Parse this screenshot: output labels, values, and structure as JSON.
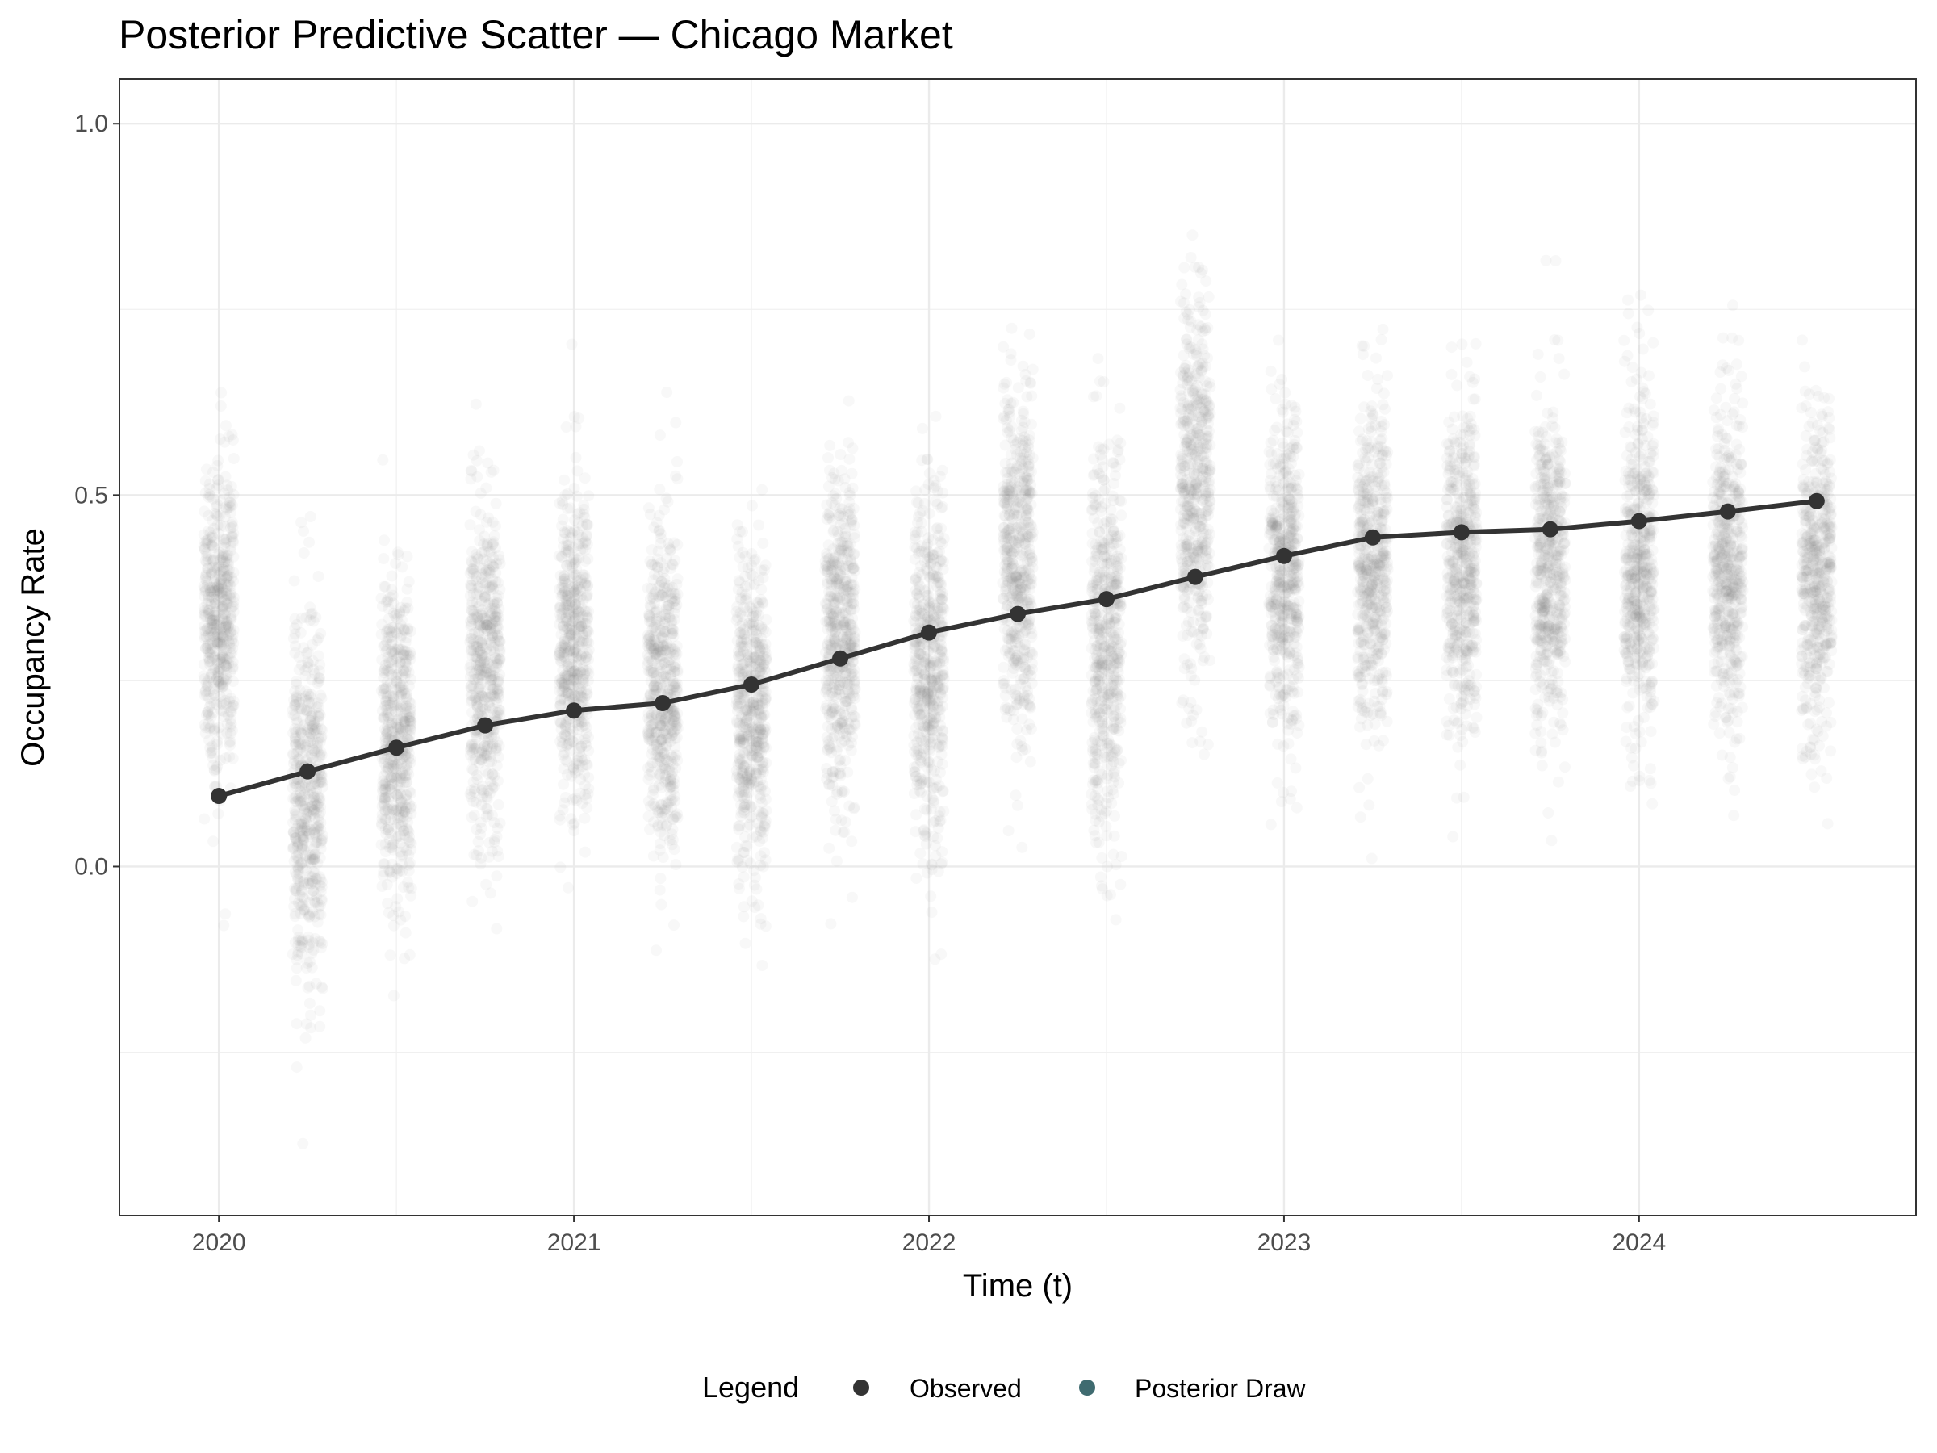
{
  "chart_data": {
    "type": "scatter",
    "title": "Posterior Predictive Scatter — Chicago Market",
    "xlabel": "Time (t)",
    "ylabel": "Occupancy Rate",
    "xlim": [
      2019.72,
      2024.78
    ],
    "ylim": [
      -0.47,
      1.06
    ],
    "x_ticks": [
      2020,
      2021,
      2022,
      2023,
      2024
    ],
    "x_tick_labels": [
      "2020",
      "2021",
      "2022",
      "2023",
      "2024"
    ],
    "y_ticks": [
      0.0,
      0.5,
      1.0
    ],
    "y_tick_labels": [
      "0.0",
      "0.5",
      "1.0"
    ],
    "grid": true,
    "legend": {
      "title": "Legend",
      "position": "bottom",
      "entries": [
        {
          "label": "Observed",
          "color": "#333333"
        },
        {
          "label": "Posterior Draw",
          "color": "#3f6b70"
        }
      ]
    },
    "series": [
      {
        "name": "Observed",
        "type": "line+points",
        "color": "#333333",
        "x": [
          2020.0,
          2020.25,
          2020.5,
          2020.75,
          2021.0,
          2021.25,
          2021.5,
          2021.75,
          2022.0,
          2022.25,
          2022.5,
          2022.75,
          2023.0,
          2023.25,
          2023.5,
          2023.75,
          2024.0,
          2024.25,
          2024.5
        ],
        "y": [
          0.095,
          0.128,
          0.16,
          0.19,
          0.21,
          0.22,
          0.245,
          0.28,
          0.315,
          0.34,
          0.36,
          0.39,
          0.418,
          0.443,
          0.45,
          0.454,
          0.465,
          0.478,
          0.492
        ]
      },
      {
        "name": "Posterior Draw",
        "type": "scatter",
        "color": "#808080",
        "summary_by_period": {
          "x": [
            2020.0,
            2020.25,
            2020.5,
            2020.75,
            2021.0,
            2021.25,
            2021.5,
            2021.75,
            2022.0,
            2022.25,
            2022.5,
            2022.75,
            2023.0,
            2023.25,
            2023.5,
            2023.75,
            2024.0,
            2024.25,
            2024.5
          ],
          "center": [
            0.34,
            0.09,
            0.17,
            0.27,
            0.29,
            0.24,
            0.2,
            0.3,
            0.27,
            0.4,
            0.3,
            0.52,
            0.4,
            0.4,
            0.4,
            0.4,
            0.4,
            0.4,
            0.4
          ],
          "spread": [
            0.1,
            0.12,
            0.11,
            0.11,
            0.11,
            0.11,
            0.11,
            0.11,
            0.12,
            0.12,
            0.13,
            0.12,
            0.11,
            0.11,
            0.11,
            0.11,
            0.11,
            0.11,
            0.11
          ]
        }
      }
    ]
  }
}
